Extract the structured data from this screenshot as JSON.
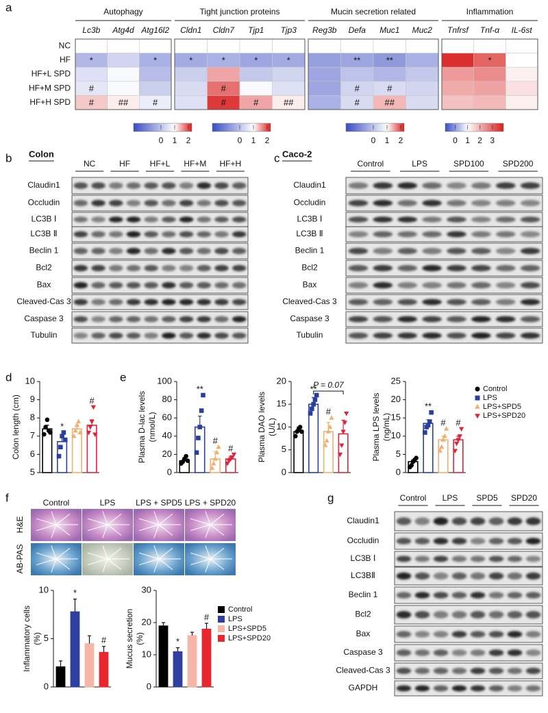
{
  "panel_labels": [
    "a",
    "b",
    "c",
    "d",
    "e",
    "f",
    "g"
  ],
  "heatmap": {
    "rows": [
      "NC",
      "HF",
      "HF+L SPD",
      "HF+M SPD",
      "HF+H SPD"
    ],
    "groups": [
      {
        "name": "Autophagy",
        "genes": [
          "Lc3b",
          "Atg4d",
          "Atg16l2"
        ],
        "values": [
          [
            1,
            1,
            1
          ],
          [
            -0.2,
            0.3,
            -0.3
          ],
          [
            0.5,
            0.9,
            -0.1
          ],
          [
            0.6,
            0.9,
            0.2
          ],
          [
            1.3,
            1.1,
            0.7
          ]
        ],
        "marks": [
          [
            null,
            null,
            null
          ],
          [
            "*",
            null,
            "*"
          ],
          [
            null,
            null,
            null
          ],
          [
            "#",
            null,
            null
          ],
          [
            "#",
            "##",
            "#"
          ]
        ],
        "colorbar": {
          "lim": [
            -2,
            2.25
          ],
          "ticks": [
            0,
            1,
            2
          ]
        }
      },
      {
        "name": "Tight junction proteins",
        "genes": [
          "Cldn1",
          "Cldn7",
          "Tjp1",
          "Tjp3"
        ],
        "values": [
          [
            1,
            1,
            1,
            1
          ],
          [
            -0.4,
            -0.3,
            -0.5,
            -0.4
          ],
          [
            0.2,
            1.5,
            0.1,
            0.3
          ],
          [
            0.4,
            1.8,
            0.9,
            0.5
          ],
          [
            0.5,
            2.1,
            1.5,
            1.1
          ]
        ],
        "marks": [
          [
            null,
            null,
            null,
            null
          ],
          [
            "*",
            "*",
            "*",
            "*"
          ],
          [
            null,
            null,
            null,
            null
          ],
          [
            null,
            "#",
            null,
            null
          ],
          [
            null,
            "#",
            "#",
            "##"
          ]
        ],
        "colorbar": {
          "lim": [
            -2,
            2.25
          ],
          "ticks": [
            0,
            1,
            2
          ]
        }
      },
      {
        "name": "Mucin secretion related",
        "genes": [
          "Reg3b",
          "Defa",
          "Muc1",
          "Muc2"
        ],
        "values": [
          [
            1,
            1,
            1,
            1
          ],
          [
            -0.6,
            -0.5,
            -0.7,
            -0.3
          ],
          [
            -0.5,
            0.0,
            -0.2,
            0.1
          ],
          [
            -0.5,
            0.3,
            0.4,
            0.3
          ],
          [
            -0.3,
            0.4,
            1.4,
            0.4
          ]
        ],
        "marks": [
          [
            null,
            null,
            null,
            null
          ],
          [
            null,
            "**",
            "**",
            null
          ],
          [
            null,
            null,
            null,
            null
          ],
          [
            null,
            "#",
            "#",
            null
          ],
          [
            null,
            "#",
            "##",
            null
          ]
        ],
        "colorbar": {
          "lim": [
            -2,
            2.25
          ],
          "ticks": [
            0,
            1,
            2
          ]
        }
      },
      {
        "name": "Inflammation",
        "genes": [
          "Tnfrsf",
          "Tnf-α",
          "IL-6st"
        ],
        "values": [
          [
            1,
            1,
            1
          ],
          [
            3.7,
            3.0,
            1.0
          ],
          [
            2.3,
            2.5,
            1.2
          ],
          [
            2.1,
            2.2,
            1.4
          ],
          [
            1.8,
            1.9,
            1.2
          ]
        ],
        "marks": [
          [
            null,
            null,
            null
          ],
          [
            null,
            "*",
            null
          ],
          [
            null,
            null,
            null
          ],
          [
            null,
            null,
            null
          ],
          [
            null,
            null,
            null
          ]
        ],
        "colorbar": {
          "lim": [
            -0.8,
            3.9
          ],
          "ticks": [
            0,
            1,
            2,
            3
          ]
        }
      }
    ]
  },
  "blot_b": {
    "title": "Colon",
    "groups": [
      "NC",
      "HF",
      "HF+L",
      "HF+M",
      "HF+H"
    ],
    "proteins": [
      "Claudin1",
      "Occludin",
      "LC3B Ⅰ",
      "LC3B Ⅱ",
      "Beclin 1",
      "Bcl2",
      "Bax",
      "Cleaved-Cas 3",
      "Caspase 3",
      "Tubulin"
    ]
  },
  "blot_c": {
    "title": "Caco-2",
    "groups": [
      "Control",
      "LPS",
      "SPD100",
      "SPD200"
    ],
    "proteins": [
      "Claudin1",
      "Occludin",
      "LC3B Ⅰ",
      "LC3B Ⅱ",
      "Beclin 1",
      "Bcl2",
      "Bax",
      "Cleaved-Cas 3",
      "Caspase 3",
      "Tubulin"
    ]
  },
  "blot_g": {
    "groups": [
      "Control",
      "LPS",
      "SPD5",
      "SPD20"
    ],
    "proteins": [
      "Claudin1",
      "Occludin",
      "LC3B Ⅰ",
      "LC3BⅡ",
      "Beclin 1",
      "Bcl2",
      "Bax",
      "Caspase 3",
      "Cleaved-Cas 3",
      "GAPDH"
    ]
  },
  "histology": {
    "columns": [
      "Control",
      "LPS",
      "LPS + SPD5",
      "LPS + SPD20"
    ],
    "rows": [
      "H&E",
      "AB-PAS"
    ]
  },
  "legend_e": {
    "names": [
      "Control",
      "LPS",
      "LPS+SPD5",
      "LPS+SPD20"
    ],
    "colors": [
      "#000000",
      "#2a3f9d",
      "#f0b070",
      "#e0233a"
    ],
    "markers": [
      "circle",
      "square",
      "triangle-up",
      "triangle-down"
    ]
  },
  "legend_f": {
    "names": [
      "Control",
      "LPS",
      "LPS+SPD5",
      "LPS+SPD20"
    ],
    "colors": [
      "#000000",
      "#2f3fa0",
      "#f4b6a6",
      "#e8262d"
    ]
  },
  "chart_data": [
    {
      "type": "bar",
      "bar_style": "outline",
      "ylabel": [
        "Colon length (cm)"
      ],
      "ylim": [
        5,
        10
      ],
      "yticks": [
        5,
        6,
        7,
        8,
        9,
        10
      ],
      "values": [
        7.4,
        6.7,
        7.4,
        7.6
      ],
      "errors": [
        0.2,
        0.4,
        0.2,
        0.3
      ],
      "marks": [
        null,
        "*",
        null,
        "#"
      ],
      "colors": [
        "#000000",
        "#2a3f9d",
        "#f0b070",
        "#e0233a"
      ],
      "points": [
        [
          7.1,
          7.5,
          7.9,
          7.3,
          7.2
        ],
        [
          5.9,
          6.4,
          7.0,
          7.2,
          6.8
        ],
        [
          7.0,
          7.3,
          7.6,
          7.8,
          7.2
        ],
        [
          7.2,
          7.5,
          7.8,
          8.6,
          7.1
        ]
      ]
    },
    {
      "type": "bar",
      "bar_style": "outline",
      "ylabel": [
        "Plasma D-lac levels",
        "(nmol/L)"
      ],
      "ylim": [
        0,
        100
      ],
      "yticks": [
        0,
        20,
        40,
        60,
        80,
        100
      ],
      "values": [
        13,
        50,
        15,
        15
      ],
      "errors": [
        3,
        12,
        8,
        3
      ],
      "marks": [
        null,
        "**",
        "#",
        "#"
      ],
      "colors": [
        "#000000",
        "#2a3f9d",
        "#f0b070",
        "#e0233a"
      ],
      "points": [
        [
          10,
          12,
          15,
          18,
          13
        ],
        [
          22,
          38,
          50,
          68,
          85
        ],
        [
          5,
          10,
          15,
          22,
          28
        ],
        [
          10,
          13,
          15,
          17,
          20
        ]
      ]
    },
    {
      "type": "bar",
      "bar_style": "outline",
      "ylabel": [
        "Plasma DAO levels",
        "(U/L)"
      ],
      "ylim": [
        0,
        20
      ],
      "yticks": [
        0,
        5,
        10,
        15,
        20
      ],
      "annotation": "P = 0.07",
      "values": [
        9,
        15,
        9,
        8.5
      ],
      "errors": [
        1,
        1.5,
        2,
        3
      ],
      "marks": [
        null,
        "**",
        "#",
        null
      ],
      "colors": [
        "#000000",
        "#2a3f9d",
        "#f0b070",
        "#e0233a"
      ],
      "points": [
        [
          8,
          9,
          9.5,
          10,
          9
        ],
        [
          13,
          14,
          15,
          16,
          17
        ],
        [
          6,
          7,
          9,
          10,
          12
        ],
        [
          4,
          6,
          9,
          11,
          13
        ]
      ]
    },
    {
      "type": "bar",
      "bar_style": "outline",
      "ylabel": [
        "Plasma LPS levels",
        "(ng/mL)"
      ],
      "ylim": [
        0,
        25
      ],
      "yticks": [
        0,
        5,
        10,
        15,
        20,
        25
      ],
      "values": [
        3,
        13.5,
        9,
        9
      ],
      "errors": [
        0.5,
        1,
        1,
        1
      ],
      "marks": [
        null,
        "**",
        "#",
        "#"
      ],
      "colors": [
        "#000000",
        "#2a3f9d",
        "#f0b070",
        "#e0233a"
      ],
      "points": [
        [
          1.5,
          2,
          3,
          3.5,
          4
        ],
        [
          11,
          12.5,
          13,
          14,
          16.5
        ],
        [
          6,
          7,
          9,
          10,
          12
        ],
        [
          6,
          8,
          9,
          10,
          12
        ]
      ]
    },
    {
      "type": "bar",
      "bar_style": "filled",
      "ylabel": [
        "Inflammatory cells",
        "(%)"
      ],
      "ylim": [
        0,
        10
      ],
      "yticks": [
        0,
        5,
        10
      ],
      "values": [
        2.1,
        7.8,
        4.5,
        3.6
      ],
      "errors": [
        0.6,
        1.3,
        0.8,
        0.6
      ],
      "marks": [
        null,
        "*",
        null,
        "#"
      ],
      "colors": [
        "#000000",
        "#2f3fa0",
        "#f4b6a6",
        "#e8262d"
      ]
    },
    {
      "type": "bar",
      "bar_style": "filled",
      "ylabel": [
        "Mucus secretion",
        "(%)"
      ],
      "ylim": [
        0,
        30
      ],
      "yticks": [
        0,
        10,
        20,
        30
      ],
      "values": [
        19,
        11,
        16,
        18
      ],
      "errors": [
        1,
        1.2,
        1,
        1.8
      ],
      "marks": [
        null,
        "*",
        null,
        "#"
      ],
      "colors": [
        "#000000",
        "#2f3fa0",
        "#f4b6a6",
        "#e8262d"
      ]
    }
  ]
}
